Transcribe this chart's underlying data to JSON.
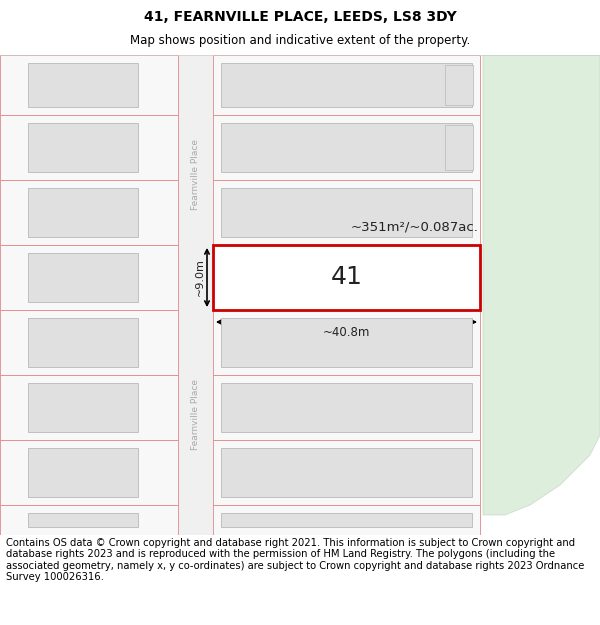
{
  "title": "41, FEARNVILLE PLACE, LEEDS, LS8 3DY",
  "subtitle": "Map shows position and indicative extent of the property.",
  "footer": "Contains OS data © Crown copyright and database right 2021. This information is subject to Crown copyright and database rights 2023 and is reproduced with the permission of HM Land Registry. The polygons (including the associated geometry, namely x, y co-ordinates) are subject to Crown copyright and database rights 2023 Ordnance Survey 100026316.",
  "highlight_color": "#cc0000",
  "area_label": "~351m²/~0.087ac.",
  "width_label": "~40.8m",
  "height_label": "~9.0m",
  "title_fontsize": 10,
  "subtitle_fontsize": 8.5,
  "footer_fontsize": 7.2,
  "road_label_upper": "Fearnville Place",
  "road_label_lower": "Fearnville Place"
}
